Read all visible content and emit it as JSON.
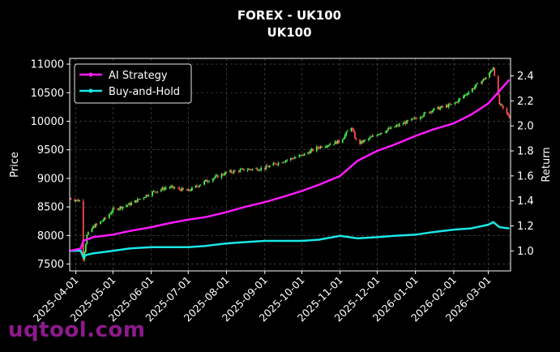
{
  "chart_data": {
    "type": "line",
    "title": "FOREX - UK100",
    "subtitle": "UK100",
    "xlabel": "",
    "ylabel_left": "Price",
    "ylabel_right": "Return",
    "grid": true,
    "legend_position": "top-left",
    "xlim": [
      "2025-03-27",
      "2026-03-19"
    ],
    "ylim_left": [
      7380,
      11100
    ],
    "ylim_right": [
      0.84,
      2.54
    ],
    "x_ticks": [
      "2025-04-01",
      "2025-05-01",
      "2025-06-01",
      "2025-07-01",
      "2025-08-01",
      "2025-09-01",
      "2025-10-01",
      "2025-11-01",
      "2025-12-01",
      "2026-01-01",
      "2026-02-01",
      "2026-03-01"
    ],
    "y_ticks_left": [
      7500,
      8000,
      8500,
      9000,
      9500,
      10000,
      10500,
      11000
    ],
    "y_ticks_right": [
      "1.0",
      "1.2",
      "1.4",
      "1.6",
      "1.8",
      "2.0",
      "2.2",
      "2.4"
    ],
    "price_candles": {
      "name": "UK100",
      "up_color": "#4df04d",
      "down_color": "#ff4d4d",
      "x": [
        "2025-03-27",
        "2025-04-05",
        "2025-04-07",
        "2025-04-10",
        "2025-04-15",
        "2025-04-25",
        "2025-05-01",
        "2025-05-15",
        "2025-06-01",
        "2025-06-15",
        "2025-07-01",
        "2025-07-15",
        "2025-08-01",
        "2025-08-15",
        "2025-09-01",
        "2025-09-15",
        "2025-10-01",
        "2025-10-15",
        "2025-11-01",
        "2025-11-10",
        "2025-11-15",
        "2025-11-25",
        "2025-12-01",
        "2025-12-15",
        "2026-01-01",
        "2026-01-15",
        "2026-02-01",
        "2026-02-15",
        "2026-03-01",
        "2026-03-05",
        "2026-03-10",
        "2026-03-18"
      ],
      "close": [
        8650,
        8600,
        7600,
        8000,
        8150,
        8300,
        8450,
        8550,
        8750,
        8850,
        8780,
        8950,
        9100,
        9150,
        9180,
        9300,
        9400,
        9550,
        9650,
        9900,
        9600,
        9700,
        9780,
        9900,
        10050,
        10200,
        10300,
        10550,
        10800,
        10950,
        10300,
        10080
      ]
    },
    "series": [
      {
        "name": "AI Strategy",
        "color": "#ff1aff",
        "x": [
          "2025-03-27",
          "2025-04-05",
          "2025-04-07",
          "2025-04-15",
          "2025-05-01",
          "2025-05-15",
          "2025-06-01",
          "2025-06-15",
          "2025-07-01",
          "2025-07-15",
          "2025-08-01",
          "2025-08-15",
          "2025-09-01",
          "2025-09-15",
          "2025-10-01",
          "2025-10-15",
          "2025-11-01",
          "2025-11-15",
          "2025-12-01",
          "2025-12-15",
          "2026-01-01",
          "2026-01-15",
          "2026-02-01",
          "2026-02-15",
          "2026-03-01",
          "2026-03-10",
          "2026-03-18"
        ],
        "values": [
          1.0,
          1.02,
          1.08,
          1.11,
          1.13,
          1.16,
          1.19,
          1.22,
          1.25,
          1.27,
          1.31,
          1.35,
          1.39,
          1.43,
          1.48,
          1.53,
          1.6,
          1.72,
          1.8,
          1.85,
          1.92,
          1.97,
          2.02,
          2.09,
          2.18,
          2.28,
          2.37
        ]
      },
      {
        "name": "Buy-and-Hold",
        "color": "#1ae6e6",
        "x": [
          "2025-03-27",
          "2025-04-05",
          "2025-04-07",
          "2025-04-10",
          "2025-04-15",
          "2025-05-01",
          "2025-05-15",
          "2025-06-01",
          "2025-06-15",
          "2025-07-01",
          "2025-07-15",
          "2025-08-01",
          "2025-08-15",
          "2025-09-01",
          "2025-09-15",
          "2025-10-01",
          "2025-10-15",
          "2025-11-01",
          "2025-11-15",
          "2025-12-01",
          "2025-12-15",
          "2026-01-01",
          "2026-01-15",
          "2026-02-01",
          "2026-02-15",
          "2026-03-01",
          "2026-03-05",
          "2026-03-10",
          "2026-03-18"
        ],
        "values": [
          1.0,
          1.0,
          0.95,
          0.97,
          0.98,
          1.0,
          1.02,
          1.03,
          1.03,
          1.03,
          1.04,
          1.06,
          1.07,
          1.08,
          1.08,
          1.08,
          1.09,
          1.12,
          1.1,
          1.11,
          1.12,
          1.13,
          1.15,
          1.17,
          1.18,
          1.21,
          1.23,
          1.19,
          1.18
        ]
      }
    ]
  },
  "watermark": "uqtool.com"
}
